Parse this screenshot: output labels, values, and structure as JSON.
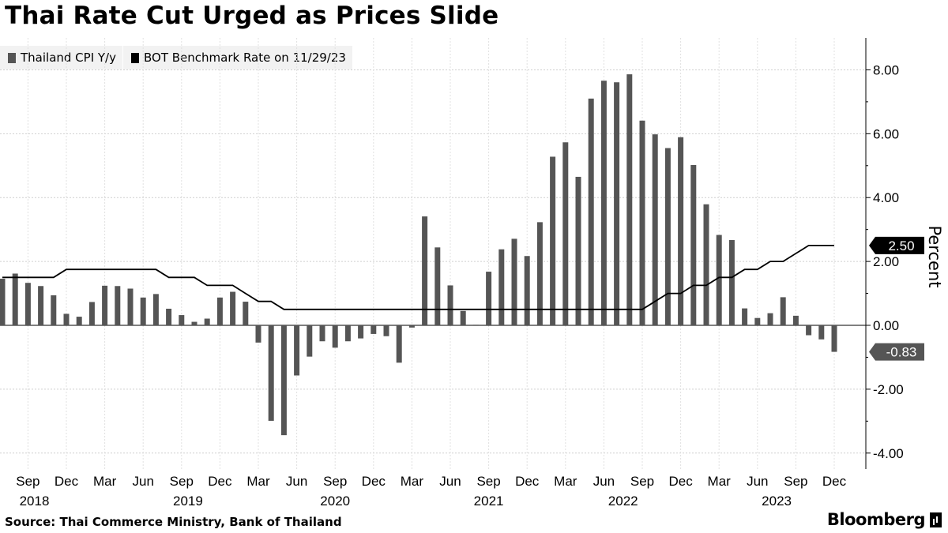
{
  "title": "Thai Rate Cut Urged as Prices Slide",
  "legend": [
    {
      "label": "Thailand CPI Y/y",
      "color": "#555555"
    },
    {
      "label": "BOT Benchmark Rate on 11/29/23",
      "color": "#000000"
    }
  ],
  "source": "Source: Thai Commerce Ministry, Bank of Thailand",
  "brand": "Bloomberg",
  "chart_data": {
    "type": "bar",
    "title": "Thai Rate Cut Urged as Prices Slide",
    "ylabel": "Percent",
    "ylim": [
      -4.5,
      9.0
    ],
    "y_ticks": [
      8.0,
      6.0,
      4.0,
      2.0,
      0.0,
      -2.0,
      -4.0
    ],
    "y_tick_labels": [
      "8.00",
      "6.00",
      "4.00",
      "2.00",
      "0.00",
      "-2.00",
      "-4.00"
    ],
    "x_tick_labels": [
      "Sep",
      "Dec",
      "Mar",
      "Jun",
      "Sep",
      "Dec",
      "Mar",
      "Jun",
      "Sep",
      "Dec",
      "Mar",
      "Jun",
      "Sep",
      "Dec",
      "Mar",
      "Jun",
      "Sep",
      "Dec",
      "Mar",
      "Jun",
      "Sep",
      "Dec"
    ],
    "x_tick_months": [
      2,
      5,
      8,
      11,
      14,
      17,
      20,
      23,
      26,
      29,
      32,
      35,
      38,
      41,
      44,
      47,
      50,
      53,
      56,
      59,
      62,
      65
    ],
    "year_labels": [
      "2018",
      "2019",
      "2020",
      "2021",
      "2022",
      "2023"
    ],
    "year_label_months": [
      2.5,
      14.5,
      26.0,
      38.0,
      48.5,
      60.5
    ],
    "months_start": "2018-07",
    "series": [
      {
        "name": "Thailand CPI Y/y",
        "color": "#555555",
        "values": [
          1.46,
          1.62,
          1.33,
          1.23,
          0.94,
          0.36,
          0.27,
          0.73,
          1.24,
          1.23,
          1.15,
          0.87,
          0.98,
          0.52,
          0.32,
          0.11,
          0.21,
          0.87,
          1.05,
          0.74,
          -0.54,
          -2.99,
          -3.44,
          -1.57,
          -0.98,
          -0.5,
          -0.7,
          -0.5,
          -0.41,
          -0.27,
          -0.34,
          -1.17,
          -0.07,
          3.41,
          2.44,
          1.25,
          0.45,
          0.02,
          1.68,
          2.38,
          2.71,
          2.17,
          3.23,
          5.28,
          5.73,
          4.65,
          7.1,
          7.66,
          7.61,
          7.86,
          6.41,
          5.98,
          5.55,
          5.89,
          5.02,
          3.79,
          2.83,
          2.67,
          0.53,
          0.23,
          0.38,
          0.88,
          0.3,
          -0.31,
          -0.44,
          -0.83
        ]
      },
      {
        "name": "BOT Benchmark Rate on 11/29/23",
        "color": "#000000",
        "type": "line",
        "values": [
          1.5,
          1.5,
          1.5,
          1.5,
          1.5,
          1.75,
          1.75,
          1.75,
          1.75,
          1.75,
          1.75,
          1.75,
          1.75,
          1.5,
          1.5,
          1.5,
          1.25,
          1.25,
          1.25,
          1.0,
          0.75,
          0.75,
          0.5,
          0.5,
          0.5,
          0.5,
          0.5,
          0.5,
          0.5,
          0.5,
          0.5,
          0.5,
          0.5,
          0.5,
          0.5,
          0.5,
          0.5,
          0.5,
          0.5,
          0.5,
          0.5,
          0.5,
          0.5,
          0.5,
          0.5,
          0.5,
          0.5,
          0.5,
          0.5,
          0.5,
          0.5,
          0.75,
          1.0,
          1.0,
          1.25,
          1.25,
          1.5,
          1.5,
          1.75,
          1.75,
          2.0,
          2.0,
          2.25,
          2.5,
          2.5,
          2.5
        ]
      }
    ],
    "callouts": [
      {
        "label": "2.50",
        "value": 2.5,
        "style": "dark"
      },
      {
        "label": "-0.83",
        "value": -0.83,
        "style": "gray"
      }
    ]
  }
}
